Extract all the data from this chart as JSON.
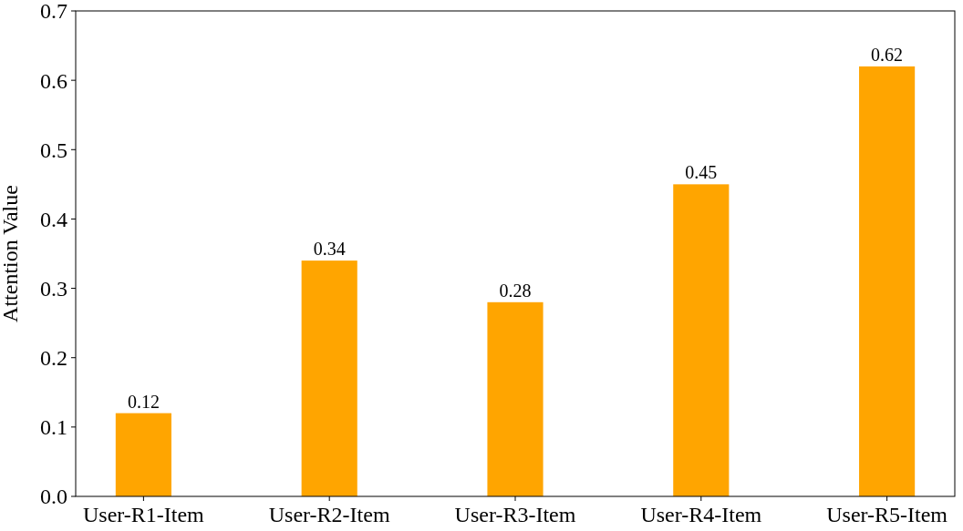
{
  "chart_data": {
    "type": "bar",
    "ylabel": "Attention Value",
    "categories": [
      "User-R1-Item",
      "User-R2-Item",
      "User-R3-Item",
      "User-R4-Item",
      "User-R5-Item"
    ],
    "values": [
      0.12,
      0.34,
      0.28,
      0.45,
      0.62
    ],
    "color": "#ffa500",
    "ylim": [
      0,
      0.7
    ],
    "yticks": [
      {
        "value": 0,
        "label": "0.0"
      },
      {
        "value": 0.1,
        "label": "0.1"
      },
      {
        "value": 0.2,
        "label": "0.2"
      },
      {
        "value": 0.3,
        "label": "0.3"
      },
      {
        "value": 0.4,
        "label": "0.4"
      },
      {
        "value": 0.5,
        "label": "0.5"
      },
      {
        "value": 0.6,
        "label": "0.6"
      },
      {
        "value": 0.7,
        "label": "0.7"
      }
    ],
    "data_labels": true,
    "grid": false
  }
}
